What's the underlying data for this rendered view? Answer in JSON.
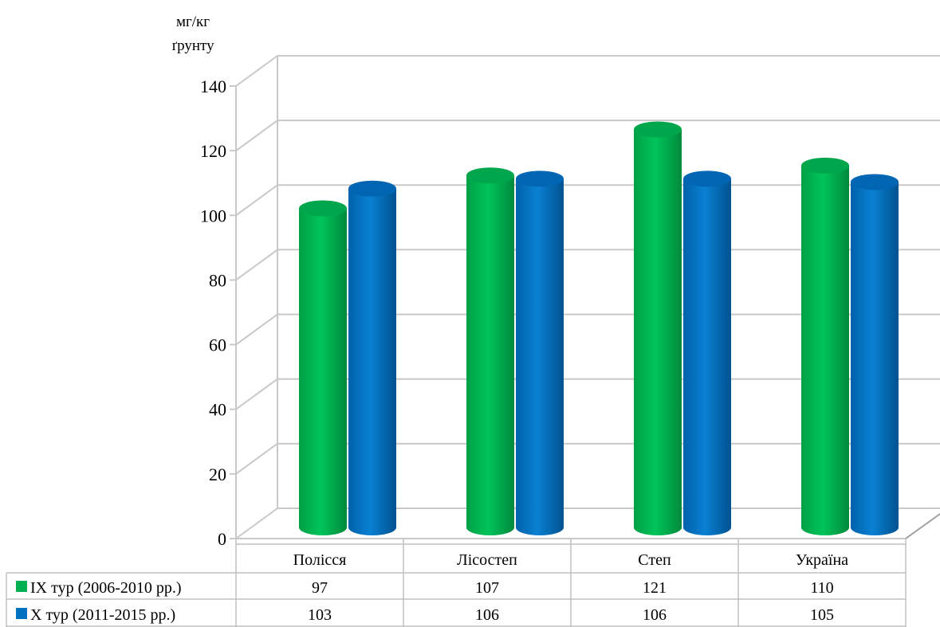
{
  "chart_data": {
    "type": "bar",
    "title": "",
    "ylabel_line1": "мг/кг",
    "ylabel_line2": "ґрунту",
    "xlabel": "",
    "ylim": [
      0,
      140
    ],
    "yticks": [
      0,
      20,
      40,
      60,
      80,
      100,
      120,
      140
    ],
    "ytick_labels": [
      "0",
      "20",
      "40",
      "60",
      "80",
      "100",
      "120",
      "140"
    ],
    "grid": true,
    "legend": "data-table-left",
    "categories": [
      "Полісся",
      "Лісостеп",
      "Степ",
      "Україна"
    ],
    "series": [
      {
        "name": "ІХ тур (2006-2010 рр.)",
        "color": "#00b050",
        "values": [
          97,
          107,
          121,
          110
        ],
        "value_labels": [
          "97",
          "107",
          "121",
          "110"
        ]
      },
      {
        "name": "Х тур (2011-2015 рр.)",
        "color": "#0070c0",
        "values": [
          103,
          106,
          106,
          105
        ],
        "value_labels": [
          "103",
          "106",
          "106",
          "105"
        ]
      }
    ]
  }
}
